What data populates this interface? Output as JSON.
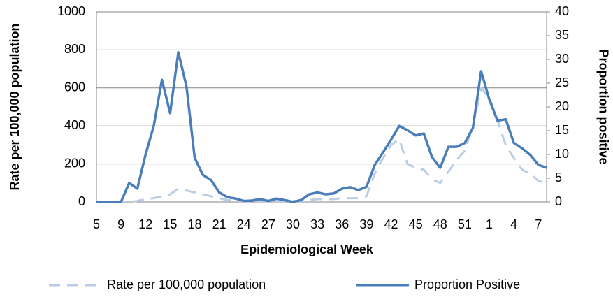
{
  "chart_data": {
    "type": "line",
    "x_label": "Epidemiological Week",
    "y_label": "Rate per 100,000 population",
    "y2_label": "Proportion positive",
    "categories": [
      "5",
      null,
      null,
      "9",
      null,
      null,
      "12",
      null,
      null,
      "15",
      null,
      null,
      "18",
      null,
      null,
      "21",
      null,
      null,
      "24",
      null,
      null,
      "27",
      null,
      null,
      "30",
      null,
      null,
      "33",
      null,
      null,
      "36",
      null,
      null,
      "39",
      null,
      null,
      "42",
      null,
      null,
      "45",
      null,
      null,
      "48",
      null,
      null,
      "51",
      null,
      null,
      "1",
      null,
      null,
      "4",
      null,
      null,
      "7",
      null
    ],
    "series": [
      {
        "name": "Rate per 100,000 population",
        "color": "#b9cde5",
        "style": "dashed",
        "axis": "y",
        "values": [
          0,
          0,
          0,
          0,
          0,
          5,
          15,
          20,
          30,
          40,
          70,
          60,
          50,
          40,
          30,
          20,
          10,
          5,
          5,
          5,
          5,
          5,
          5,
          5,
          5,
          5,
          10,
          15,
          15,
          15,
          20,
          20,
          20,
          30,
          150,
          230,
          300,
          330,
          200,
          180,
          170,
          120,
          100,
          160,
          220,
          270,
          400,
          600,
          550,
          430,
          300,
          230,
          170,
          150,
          110,
          100
        ]
      },
      {
        "name": "Proportion Positive",
        "color": "#4a7ebb",
        "style": "solid",
        "axis": "y2",
        "values": [
          0,
          0,
          0,
          0,
          4,
          2.8,
          10,
          16,
          25.7,
          18.7,
          31.5,
          24.3,
          9.3,
          5.7,
          4.6,
          2,
          1,
          0.7,
          0.2,
          0.3,
          0.6,
          0.2,
          0.7,
          0.4,
          0,
          0.4,
          1.6,
          2,
          1.6,
          1.8,
          2.8,
          3.1,
          2.5,
          3.2,
          7.8,
          10.4,
          13.1,
          16,
          15.1,
          14,
          14.4,
          9.4,
          7.2,
          11.6,
          11.6,
          12.4,
          15.6,
          27.5,
          21.6,
          17.1,
          17.4,
          12.4,
          11.3,
          9.9,
          7.8,
          7.2
        ]
      }
    ],
    "ylim": [
      0,
      1000
    ],
    "yticks": [
      0,
      200,
      400,
      600,
      800,
      1000
    ],
    "y2lim": [
      0,
      40
    ],
    "y2ticks": [
      0,
      5,
      10,
      15,
      20,
      25,
      30,
      35,
      40
    ],
    "grid": true,
    "legend": "bottom"
  }
}
